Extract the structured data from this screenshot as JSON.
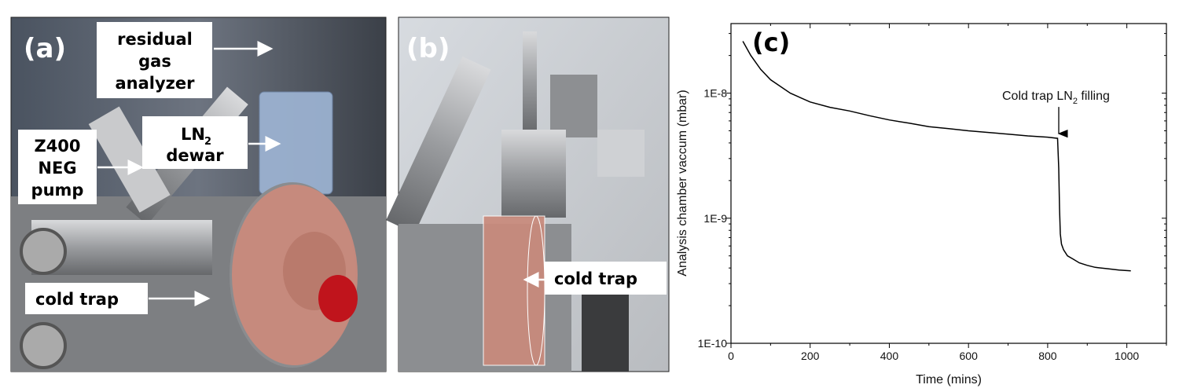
{
  "panel_a": {
    "letter": "(a)",
    "labels": {
      "rga": [
        "residual",
        "gas",
        "analyzer"
      ],
      "neg": [
        "Z400",
        "NEG",
        "pump"
      ],
      "ln2_main": "LN",
      "ln2_sub": "2",
      "ln2_second": "dewar",
      "cold_trap": "cold trap"
    },
    "colors": {
      "copper": "#c98a7c",
      "dewar": "#9fb6d6",
      "red_cap": "#c0141c"
    }
  },
  "panel_b": {
    "letter": "(b)",
    "labels": {
      "cold_trap": "cold trap"
    }
  },
  "chart_data": {
    "type": "line",
    "panel_letter": "(c)",
    "xlabel": "Time (mins)",
    "ylabel": "Analysis chamber vaccum (mbar)",
    "xlim": [
      0,
      1100
    ],
    "ylim": [
      1e-10,
      3.6e-08
    ],
    "yscale": "log",
    "xticks": [
      0,
      200,
      400,
      600,
      800,
      1000
    ],
    "xtick_labels": [
      "0",
      "200",
      "400",
      "600",
      "800",
      "1000"
    ],
    "yticks": [
      1e-10,
      1e-09,
      1e-08
    ],
    "ytick_labels": [
      "1E-10",
      "1E-9",
      "1E-8"
    ],
    "grid": false,
    "line_color": "#000000",
    "annotation": {
      "text_main": "Cold trap LN",
      "text_sub": "2",
      "text_after": " filling",
      "x": 828,
      "y": 4.35e-09
    },
    "series": [
      {
        "x": [
          30,
          50,
          75,
          100,
          150,
          200,
          250,
          300,
          350,
          400,
          450,
          500,
          550,
          600,
          650,
          700,
          750,
          800,
          825,
          828,
          830,
          832,
          835,
          840,
          850,
          865,
          880,
          900,
          920,
          950,
          980,
          1010
        ],
        "y": [
          2.6e-08,
          2e-08,
          1.55e-08,
          1.28e-08,
          1e-08,
          8.5e-09,
          7.7e-09,
          7.2e-09,
          6.6e-09,
          6.1e-09,
          5.75e-09,
          5.4e-09,
          5.2e-09,
          5e-09,
          4.85e-09,
          4.7e-09,
          4.55e-09,
          4.45e-09,
          4.35e-09,
          2.5e-09,
          1.2e-09,
          7.5e-10,
          6.2e-10,
          5.6e-10,
          5e-10,
          4.7e-10,
          4.4e-10,
          4.2e-10,
          4.05e-10,
          3.95e-10,
          3.85e-10,
          3.8e-10
        ]
      }
    ]
  }
}
